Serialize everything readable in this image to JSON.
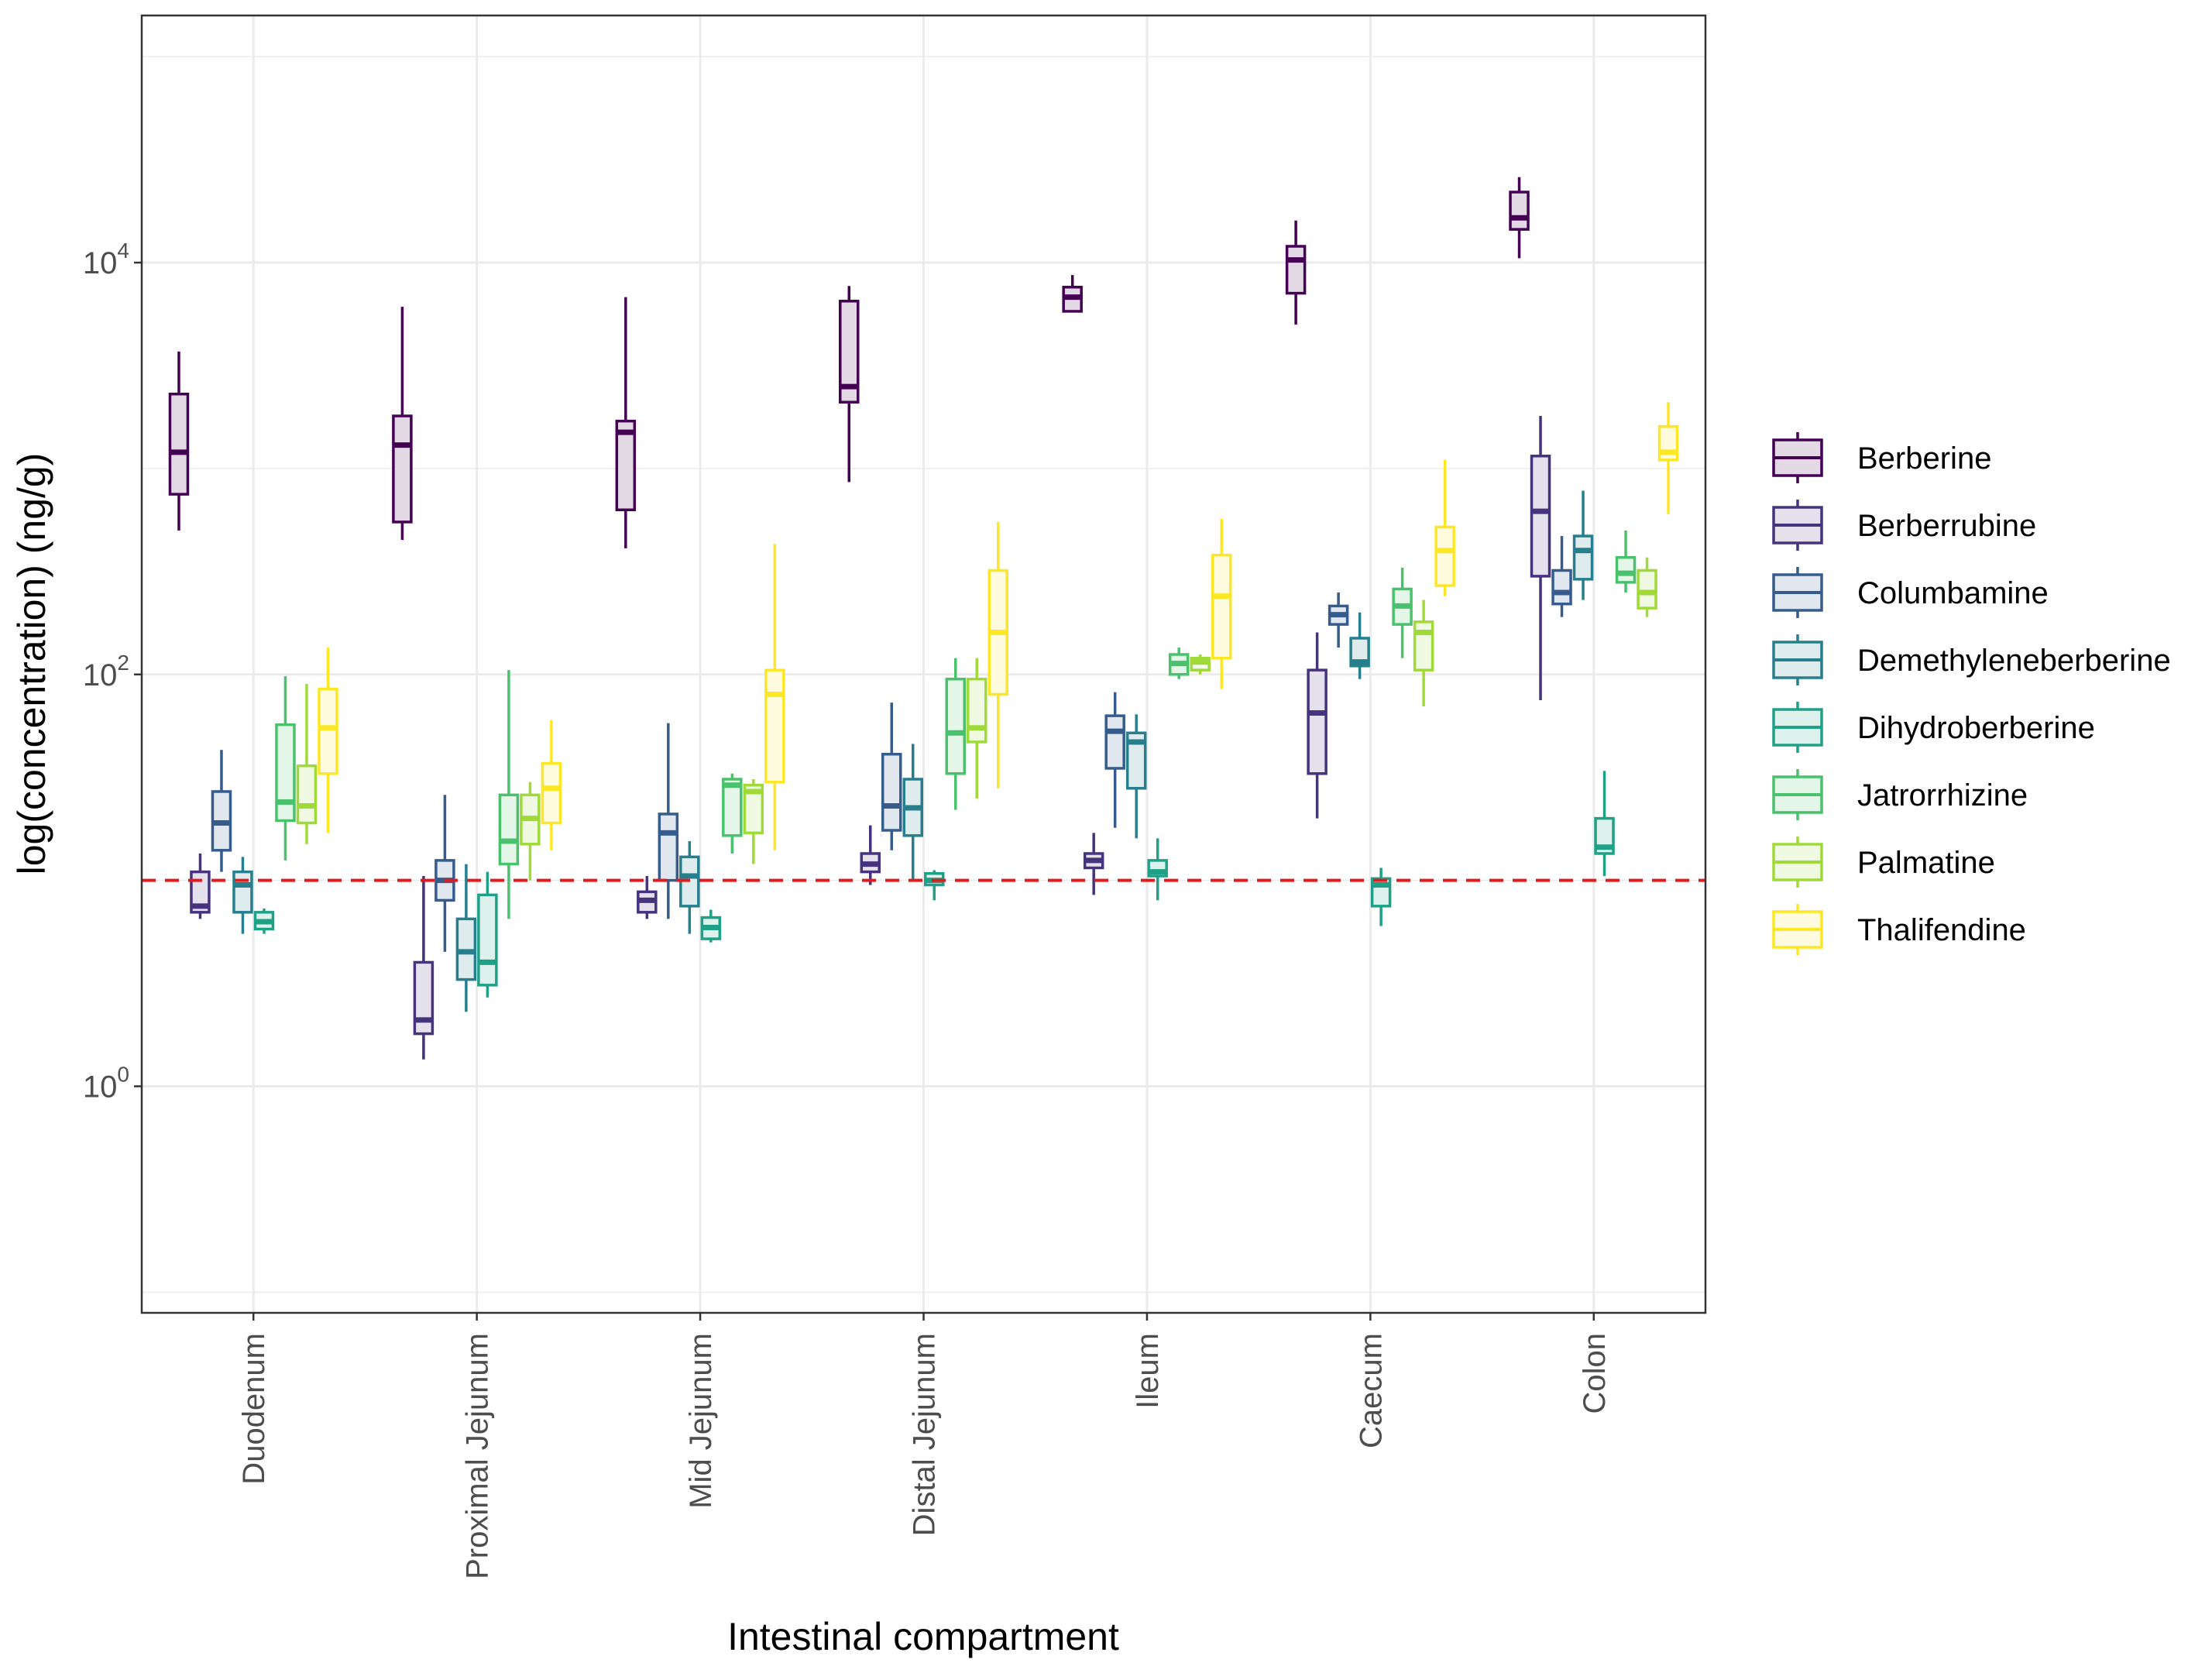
{
  "chart_data": {
    "type": "box",
    "xlabel": "Intestinal compartment",
    "ylabel": "log(concentration) (ng/g)",
    "y_scale": "log10",
    "ylim": [
      0.0794,
      158489
    ],
    "y_ticks": [
      {
        "value": 1,
        "base": "10",
        "exp": "0"
      },
      {
        "value": 100,
        "base": "10",
        "exp": "2"
      },
      {
        "value": 10000,
        "base": "10",
        "exp": "4"
      }
    ],
    "y_minor_ticks": [
      0.1,
      10,
      1000,
      100000
    ],
    "grid": true,
    "legend_position": "right",
    "reference_line": {
      "value": 10,
      "color": "#e41a1c",
      "style": "dashed"
    },
    "categories": [
      "Duodenum",
      "Proximal Jejunum",
      "Mid Jejunum",
      "Distal Jejunum",
      "Ileum",
      "Caecum",
      "Colon"
    ],
    "series": [
      {
        "name": "Berberine",
        "color": "#440154",
        "fill": "#e3d9e5",
        "boxes": [
          {
            "min": 500,
            "q1": 750,
            "median": 1200,
            "q3": 2300,
            "max": 3700
          },
          {
            "min": 450,
            "q1": 550,
            "median": 1300,
            "q3": 1800,
            "max": 6100
          },
          {
            "min": 410,
            "q1": 630,
            "median": 1500,
            "q3": 1700,
            "max": 6800
          },
          {
            "min": 860,
            "q1": 2100,
            "median": 2500,
            "q3": 6500,
            "max": 7700
          },
          {
            "min": 5800,
            "q1": 5800,
            "median": 6800,
            "q3": 7600,
            "max": 8700
          },
          {
            "min": 5000,
            "q1": 7100,
            "median": 10300,
            "q3": 12000,
            "max": 16000
          },
          {
            "min": 10500,
            "q1": 14500,
            "median": 16500,
            "q3": 22000,
            "max": 26000
          }
        ]
      },
      {
        "name": "Berberrubine",
        "color": "#46337e",
        "fill": "#e4e1ec",
        "boxes": [
          {
            "min": 6.5,
            "q1": 7.0,
            "median": 7.5,
            "q3": 11.0,
            "max": 13.5
          },
          {
            "min": 1.35,
            "q1": 1.8,
            "median": 2.1,
            "q3": 4.0,
            "max": 10.5
          },
          {
            "min": 6.5,
            "q1": 7.0,
            "median": 8.0,
            "q3": 8.8,
            "max": 10.5
          },
          {
            "min": 9.5,
            "q1": 11.0,
            "median": 12.0,
            "q3": 13.5,
            "max": 18.5
          },
          {
            "min": 8.5,
            "q1": 11.5,
            "median": 12.5,
            "q3": 13.5,
            "max": 17.0
          },
          {
            "min": 20.0,
            "q1": 33.0,
            "median": 65.0,
            "q3": 105.0,
            "max": 160.0
          },
          {
            "min": 75.0,
            "q1": 300.0,
            "median": 620.0,
            "q3": 1150.0,
            "max": 1800.0
          }
        ]
      },
      {
        "name": "Columbamine",
        "color": "#365c8d",
        "fill": "#e1e7ee",
        "boxes": [
          {
            "min": 11.0,
            "q1": 14.0,
            "median": 19.0,
            "q3": 27.0,
            "max": 43.0
          },
          {
            "min": 4.5,
            "q1": 8.0,
            "median": 10.0,
            "q3": 12.5,
            "max": 26.0
          },
          {
            "min": 6.5,
            "q1": 10.0,
            "median": 17.0,
            "q3": 21.0,
            "max": 58.0
          },
          {
            "min": 14.0,
            "q1": 17.5,
            "median": 23.0,
            "q3": 41.0,
            "max": 73.0
          },
          {
            "min": 18.0,
            "q1": 35.0,
            "median": 53.0,
            "q3": 63.0,
            "max": 82.0
          },
          {
            "min": 135.0,
            "q1": 175.0,
            "median": 195.0,
            "q3": 215.0,
            "max": 250.0
          },
          {
            "min": 190.0,
            "q1": 220.0,
            "median": 250.0,
            "q3": 320.0,
            "max": 470.0
          }
        ]
      },
      {
        "name": "Demethyleneberberine",
        "color": "#277f8e",
        "fill": "#dfecee",
        "boxes": [
          {
            "min": 5.5,
            "q1": 7.0,
            "median": 9.5,
            "q3": 11.0,
            "max": 13.0
          },
          {
            "min": 2.3,
            "q1": 3.3,
            "median": 4.5,
            "q3": 6.5,
            "max": 12.0
          },
          {
            "min": 5.5,
            "q1": 7.5,
            "median": 10.5,
            "q3": 13.0,
            "max": 15.5
          },
          {
            "min": 10.0,
            "q1": 16.5,
            "median": 22.5,
            "q3": 31.0,
            "max": 46.0
          },
          {
            "min": 16.0,
            "q1": 28.0,
            "median": 47.0,
            "q3": 52.0,
            "max": 64.0
          },
          {
            "min": 95.0,
            "q1": 110.0,
            "median": 115.0,
            "q3": 150.0,
            "max": 200.0
          },
          {
            "min": 230.0,
            "q1": 290.0,
            "median": 400.0,
            "q3": 470.0,
            "max": 780.0
          }
        ]
      },
      {
        "name": "Dihydroberberine",
        "color": "#1fa187",
        "fill": "#ddf1ed",
        "boxes": [
          {
            "min": 5.5,
            "q1": 5.8,
            "median": 6.3,
            "q3": 7.0,
            "max": 7.3
          },
          {
            "min": 2.7,
            "q1": 3.1,
            "median": 4.0,
            "q3": 8.5,
            "max": 11.0
          },
          {
            "min": 5.0,
            "q1": 5.2,
            "median": 5.9,
            "q3": 6.6,
            "max": 7.2
          },
          {
            "min": 8.0,
            "q1": 9.5,
            "median": 10.0,
            "q3": 10.8,
            "max": 11.2
          },
          {
            "min": 8.0,
            "q1": 10.5,
            "median": 11.0,
            "q3": 12.5,
            "max": 16.0
          },
          {
            "min": 6.0,
            "q1": 7.5,
            "median": 9.5,
            "q3": 10.2,
            "max": 11.5
          },
          {
            "min": 10.5,
            "q1": 13.5,
            "median": 14.5,
            "q3": 20.0,
            "max": 34.0
          }
        ]
      },
      {
        "name": "Jatrorrhizine",
        "color": "#4ac16d",
        "fill": "#e3f6e8",
        "boxes": [
          {
            "min": 12.5,
            "q1": 19.5,
            "median": 24.0,
            "q3": 57.0,
            "max": 98.0
          },
          {
            "min": 6.5,
            "q1": 12.0,
            "median": 15.5,
            "q3": 26.0,
            "max": 105.0
          },
          {
            "min": 13.5,
            "q1": 16.5,
            "median": 29.0,
            "q3": 31.0,
            "max": 33.0
          },
          {
            "min": 22.0,
            "q1": 33.0,
            "median": 52.0,
            "q3": 95.0,
            "max": 120.0
          },
          {
            "min": 95.0,
            "q1": 100.0,
            "median": 113.0,
            "q3": 125.0,
            "max": 135.0
          },
          {
            "min": 120.0,
            "q1": 175.0,
            "median": 215.0,
            "q3": 260.0,
            "max": 330.0
          },
          {
            "min": 250.0,
            "q1": 280.0,
            "median": 310.0,
            "q3": 370.0,
            "max": 500.0
          }
        ]
      },
      {
        "name": "Palmatine",
        "color": "#a0da39",
        "fill": "#f0f9e2",
        "boxes": [
          {
            "min": 15.0,
            "q1": 19.0,
            "median": 23.0,
            "q3": 36.0,
            "max": 90.0
          },
          {
            "min": 10.0,
            "q1": 15.0,
            "median": 20.0,
            "q3": 26.0,
            "max": 30.0
          },
          {
            "min": 12.0,
            "q1": 17.0,
            "median": 27.0,
            "q3": 29.0,
            "max": 31.0
          },
          {
            "min": 25.0,
            "q1": 47.0,
            "median": 55.0,
            "q3": 95.0,
            "max": 120.0
          },
          {
            "min": 100.0,
            "q1": 105.0,
            "median": 115.0,
            "q3": 120.0,
            "max": 125.0
          },
          {
            "min": 70.0,
            "q1": 105.0,
            "median": 160.0,
            "q3": 180.0,
            "max": 230.0
          },
          {
            "min": 190.0,
            "q1": 210.0,
            "median": 250.0,
            "q3": 320.0,
            "max": 370.0
          }
        ]
      },
      {
        "name": "Thalifendine",
        "color": "#fde725",
        "fill": "#fffbdf",
        "boxes": [
          {
            "min": 17.0,
            "q1": 33.0,
            "median": 55.0,
            "q3": 85.0,
            "max": 135.0
          },
          {
            "min": 14.0,
            "q1": 19.0,
            "median": 28.0,
            "q3": 37.0,
            "max": 60.0
          },
          {
            "min": 14.0,
            "q1": 30.0,
            "median": 80.0,
            "q3": 105.0,
            "max": 430.0
          },
          {
            "min": 28.0,
            "q1": 80.0,
            "median": 160.0,
            "q3": 320.0,
            "max": 550.0
          },
          {
            "min": 85.0,
            "q1": 120.0,
            "median": 240.0,
            "q3": 380.0,
            "max": 570.0
          },
          {
            "min": 240.0,
            "q1": 270.0,
            "median": 400.0,
            "q3": 520.0,
            "max": 1100.0
          },
          {
            "min": 600.0,
            "q1": 1100.0,
            "median": 1200.0,
            "q3": 1600.0,
            "max": 2100.0
          }
        ]
      }
    ]
  }
}
